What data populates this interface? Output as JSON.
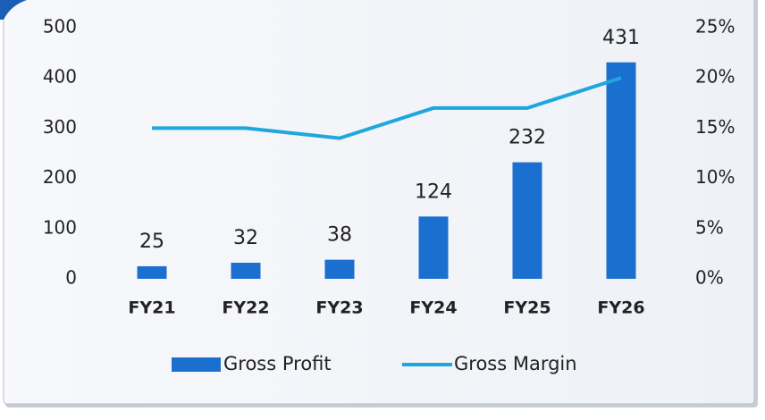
{
  "chart_data": {
    "type": "bar",
    "categories": [
      "FY21",
      "FY22",
      "FY23",
      "FY24",
      "FY25",
      "FY26"
    ],
    "series": [
      {
        "name": "Gross Profit",
        "color": "#1a6fcf",
        "values": [
          25,
          32,
          38,
          124,
          232,
          431
        ]
      },
      {
        "name": "Gross Margin",
        "color": "#1ea7dc",
        "axis": "y2",
        "type": "line",
        "values": [
          15,
          15,
          14,
          17,
          17,
          20
        ]
      }
    ],
    "ylim": [
      0,
      500
    ],
    "yticks": [
      0,
      100,
      200,
      300,
      400,
      500
    ],
    "y2lim": [
      0,
      25
    ],
    "y2ticks": [
      {
        "value": 0,
        "label": "0%"
      },
      {
        "value": 5,
        "label": "5%"
      },
      {
        "value": 10,
        "label": "10%"
      },
      {
        "value": 15,
        "label": "15%"
      },
      {
        "value": 20,
        "label": "20%"
      },
      {
        "value": 25,
        "label": "25%"
      }
    ],
    "legend": "bottom"
  }
}
